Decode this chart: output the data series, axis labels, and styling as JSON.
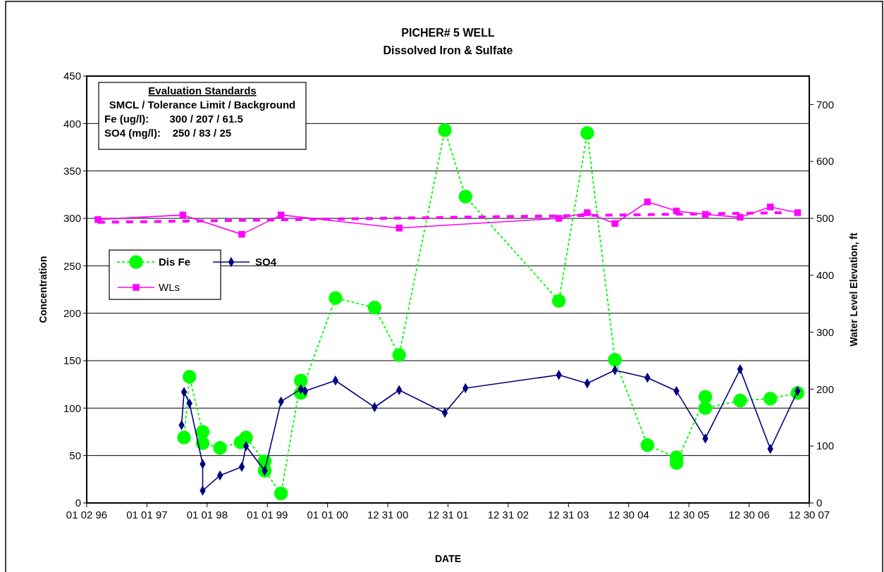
{
  "chart_data": {
    "type": "line",
    "title": "PICHER# 5 WELL",
    "subtitle": "Dissolved Iron & Sulfate",
    "xlabel": "DATE",
    "ylabel": "Concentration",
    "y2label": "Water Level Elevation, ft",
    "annotations": [
      "Evaluation Standards",
      "SMCL / Tolerance Limit / Background",
      "Fe (ug/l):       300 / 207 / 61.5",
      "SO4 (mg/l):    250 / 83 / 25"
    ],
    "xlim": [
      "1996-01-02",
      "2007-12-30"
    ],
    "xticks": [
      {
        "value": "1996-01-02",
        "label": "01 02 96"
      },
      {
        "value": "1997-01-01",
        "label": "01 01 97"
      },
      {
        "value": "1998-01-01",
        "label": "01 01 98"
      },
      {
        "value": "1999-01-01",
        "label": "01 01 99"
      },
      {
        "value": "2000-01-01",
        "label": "01 01 00"
      },
      {
        "value": "2000-12-31",
        "label": "12 31 00"
      },
      {
        "value": "2001-12-31",
        "label": "12 31 01"
      },
      {
        "value": "2002-12-31",
        "label": "12 31 02"
      },
      {
        "value": "2003-12-31",
        "label": "12 31 03"
      },
      {
        "value": "2004-12-30",
        "label": "12 30 04"
      },
      {
        "value": "2005-12-30",
        "label": "12 30 05"
      },
      {
        "value": "2006-12-30",
        "label": "12 30 06"
      },
      {
        "value": "2007-12-30",
        "label": "12 30 07"
      }
    ],
    "ylim": [
      0,
      450
    ],
    "yticks": [
      0,
      50,
      100,
      150,
      200,
      250,
      300,
      350,
      400,
      450
    ],
    "y2lim": [
      0,
      750
    ],
    "y2ticks": [
      0,
      100,
      200,
      300,
      400,
      500,
      600,
      700
    ],
    "grid": "y",
    "legend": "left",
    "series": [
      {
        "name": "Dis Fe",
        "color": "#00ff00",
        "marker": "circle",
        "line_style": "dotted",
        "x": [
          "1997-08-14",
          "1997-09-16",
          "1997-12-05",
          "1997-12-05",
          "1998-03-20",
          "1998-07-23",
          "1998-08-25",
          "1998-12-16",
          "1998-12-16",
          "1999-03-25",
          "1999-07-23",
          "1999-07-23",
          "2000-02-18",
          "2000-10-12",
          "2001-03-10",
          "2001-12-12",
          "2002-04-16",
          "2003-11-03",
          "2004-04-23",
          "2004-10-08",
          "2005-04-23",
          "2005-10-16",
          "2005-10-16",
          "2006-04-09",
          "2006-04-09",
          "2006-11-06",
          "2007-05-08",
          "2007-10-20"
        ],
        "values": [
          69,
          133,
          75,
          63,
          58,
          64,
          69,
          44,
          34,
          10,
          129,
          116,
          216,
          206,
          156,
          393,
          323,
          213,
          390,
          151,
          61,
          48,
          42,
          112,
          100,
          108,
          110,
          116
        ]
      },
      {
        "name": "SO4",
        "color": "#000080",
        "marker": "diamond",
        "line_style": "solid",
        "x": [
          "1997-07-30",
          "1997-08-14",
          "1997-09-16",
          "1997-12-05",
          "1997-12-05",
          "1998-03-20",
          "1998-07-30",
          "1998-08-25",
          "1998-12-16",
          "1999-03-25",
          "1999-07-23",
          "1999-08-18",
          "2000-02-18",
          "2000-10-12",
          "2001-03-10",
          "2001-12-12",
          "2002-04-16",
          "2003-11-03",
          "2004-04-23",
          "2004-10-08",
          "2005-04-23",
          "2005-10-16",
          "2006-04-09",
          "2006-11-06",
          "2007-05-08",
          "2007-10-20"
        ],
        "values": [
          82,
          117,
          105,
          41,
          13,
          29,
          38,
          60,
          34,
          107,
          120,
          118,
          129,
          101,
          119,
          95,
          121,
          135,
          126,
          140,
          132,
          118,
          68,
          141,
          57,
          118
        ]
      },
      {
        "name": "WLs",
        "color": "#ff00ff",
        "marker": "square",
        "line_style": "solid",
        "axis": "y2",
        "x": [
          "1996-03-10",
          "1997-08-07",
          "1998-07-30",
          "1999-03-25",
          "2001-03-10",
          "2003-11-03",
          "2004-04-23",
          "2004-10-08",
          "2005-04-23",
          "2005-10-16",
          "2006-04-09",
          "2006-11-06",
          "2007-05-08",
          "2007-10-20"
        ],
        "values": [
          498,
          506,
          472,
          506,
          483,
          500,
          510,
          491,
          529,
          513,
          507,
          502,
          520,
          510
        ]
      },
      {
        "type": "line",
        "color": "#ff00ff",
        "marker": "none",
        "line_style": "dashed",
        "axis": "y2",
        "x": [
          "1996-03-10",
          "2007-08-01"
        ],
        "values": [
          493,
          510
        ]
      }
    ]
  }
}
